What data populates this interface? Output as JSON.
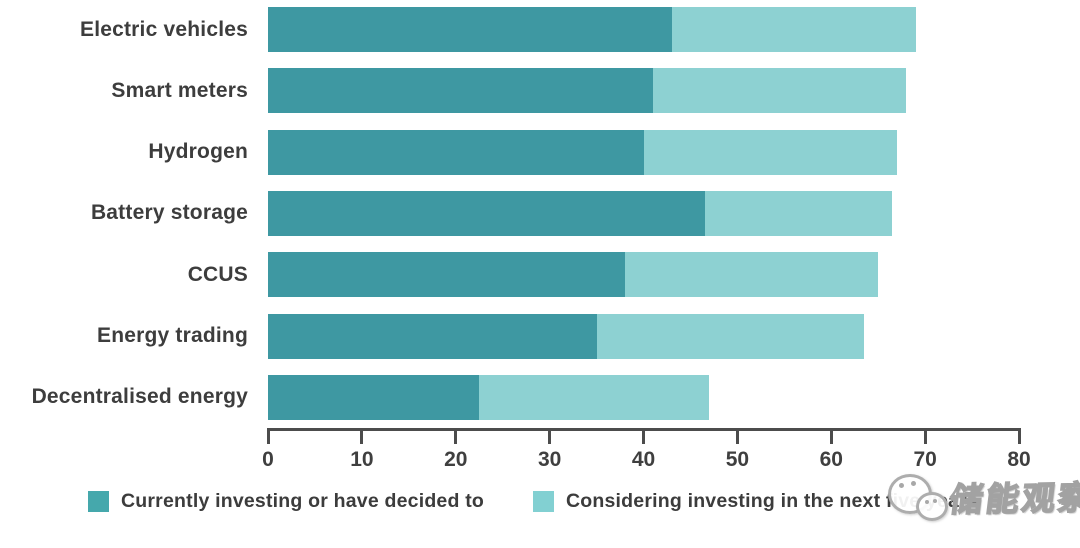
{
  "chart_data": {
    "type": "bar",
    "orientation": "horizontal",
    "title": "",
    "categories": [
      "Electric vehicles",
      "Smart meters",
      "Hydrogen",
      "Battery storage",
      "CCUS",
      "Energy trading",
      "Decentralised energy"
    ],
    "series": [
      {
        "name": "Currently investing or have decided to",
        "color": "#3e98a2",
        "values": [
          43,
          41,
          40,
          46.5,
          38,
          35,
          22.5
        ]
      },
      {
        "name": "Considering investing in the next five years",
        "color": "#8dd1d2",
        "values": [
          26,
          27,
          27,
          20,
          27,
          28.5,
          24.5
        ]
      }
    ],
    "xlabel": "",
    "ylabel": "",
    "xlim": [
      0,
      80
    ],
    "xticks": [
      0,
      10,
      20,
      30,
      40,
      50,
      60,
      70,
      80
    ],
    "grid": false,
    "legend_position": "bottom"
  },
  "legend": {
    "items": [
      {
        "label": "Currently investing or have decided to",
        "color": "#45a8ac"
      },
      {
        "label": "Considering investing in the next five years",
        "color": "#82d0d2"
      }
    ]
  },
  "watermark": {
    "icon": "wechat-icon",
    "text": "储能观察"
  },
  "colors": {
    "bar_dark": "#3e98a2",
    "bar_light": "#8dd1d2",
    "axis": "#4c4c4c",
    "text": "#3d3d3d",
    "background": "#ffffff"
  }
}
